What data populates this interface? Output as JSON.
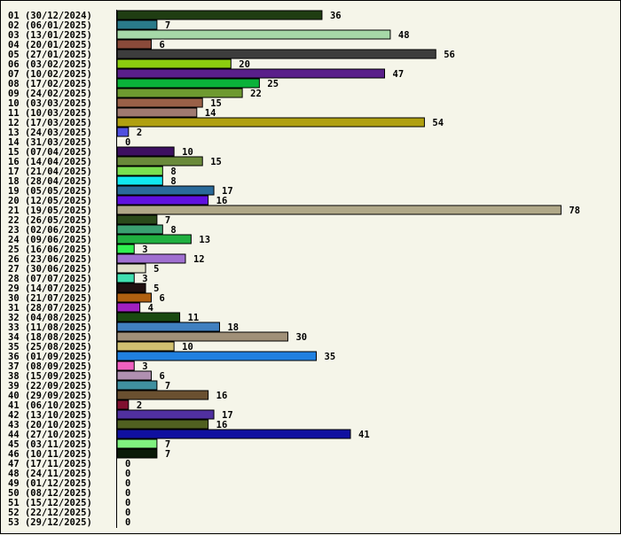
{
  "chart_data": {
    "type": "bar",
    "orientation": "horizontal",
    "title": "",
    "xlabel": "",
    "ylabel": "",
    "xlim": [
      0,
      78
    ],
    "grid": false,
    "legend": "none",
    "background": "#f5f5e9",
    "bar_outline": "#000000",
    "categories": [
      "01 (30/12/2024)",
      "02 (06/01/2025)",
      "03 (13/01/2025)",
      "04 (20/01/2025)",
      "05 (27/01/2025)",
      "06 (03/02/2025)",
      "07 (10/02/2025)",
      "08 (17/02/2025)",
      "09 (24/02/2025)",
      "10 (03/03/2025)",
      "11 (10/03/2025)",
      "12 (17/03/2025)",
      "13 (24/03/2025)",
      "14 (31/03/2025)",
      "15 (07/04/2025)",
      "16 (14/04/2025)",
      "17 (21/04/2025)",
      "18 (28/04/2025)",
      "19 (05/05/2025)",
      "20 (12/05/2025)",
      "21 (19/05/2025)",
      "22 (26/05/2025)",
      "23 (02/06/2025)",
      "24 (09/06/2025)",
      "25 (16/06/2025)",
      "26 (23/06/2025)",
      "27 (30/06/2025)",
      "28 (07/07/2025)",
      "29 (14/07/2025)",
      "30 (21/07/2025)",
      "31 (28/07/2025)",
      "32 (04/08/2025)",
      "33 (11/08/2025)",
      "34 (18/08/2025)",
      "35 (25/08/2025)",
      "36 (01/09/2025)",
      "37 (08/09/2025)",
      "38 (15/09/2025)",
      "39 (22/09/2025)",
      "40 (29/09/2025)",
      "41 (06/10/2025)",
      "42 (13/10/2025)",
      "43 (20/10/2025)",
      "44 (27/10/2025)",
      "45 (03/11/2025)",
      "46 (10/11/2025)",
      "47 (17/11/2025)",
      "48 (24/11/2025)",
      "49 (01/12/2025)",
      "50 (08/12/2025)",
      "51 (15/12/2025)",
      "52 (22/12/2025)",
      "53 (29/12/2025)"
    ],
    "values": [
      36,
      7,
      48,
      6,
      56,
      20,
      47,
      25,
      22,
      15,
      14,
      54,
      2,
      0,
      10,
      15,
      8,
      8,
      17,
      16,
      78,
      7,
      8,
      13,
      3,
      12,
      5,
      3,
      5,
      6,
      4,
      11,
      18,
      30,
      10,
      35,
      3,
      6,
      7,
      16,
      2,
      17,
      16,
      41,
      7,
      7,
      0,
      0,
      0,
      0,
      0,
      0,
      0
    ],
    "colors": [
      "#1f3d12",
      "#2a7a8a",
      "#a6d8a8",
      "#8a4a3a",
      "#3d3d3d",
      "#8ccc0f",
      "#5a1f8a",
      "#0ab23a",
      "#6e9a30",
      "#9a6048",
      "#a07a70",
      "#b0a010",
      "#5050e0",
      "#ffffff",
      "#3d1060",
      "#6a8a3a",
      "#7ae050",
      "#10e8f0",
      "#2a6a9a",
      "#6010e0",
      "#b0a888",
      "#2a4a1a",
      "#3aa070",
      "#20b040",
      "#30f050",
      "#a070d0",
      "#e0e0c8",
      "#40e0b0",
      "#201010",
      "#b06010",
      "#a020c0",
      "#1a4a10",
      "#4080c0",
      "#a09078",
      "#d0c070",
      "#2080e0",
      "#f060c0",
      "#b090b0",
      "#4090a0",
      "#6a5030",
      "#801030",
      "#5030a0",
      "#506020",
      "#1010a0",
      "#80f080",
      "#0a1a08",
      "#ffffff",
      "#ffffff",
      "#ffffff",
      "#ffffff",
      "#ffffff",
      "#ffffff",
      "#ffffff"
    ]
  }
}
